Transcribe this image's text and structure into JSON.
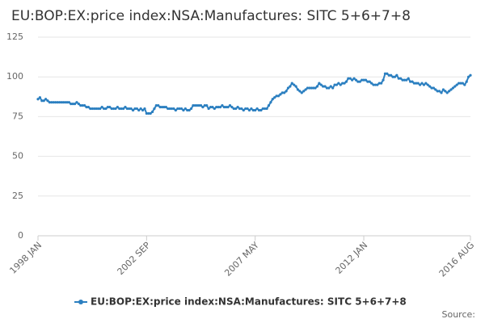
{
  "chart_data": {
    "type": "line",
    "title": "EU:BOP:EX:price index:NSA:Manufactures: SITC 5+6+7+8",
    "source": "Source:",
    "categories": [
      "1998 JAN",
      null,
      null,
      null,
      null,
      null,
      null,
      null,
      null,
      null,
      null,
      null,
      null,
      null,
      null,
      null,
      null,
      null,
      null,
      null,
      null,
      null,
      null,
      null,
      null,
      null,
      null,
      null,
      null,
      null,
      null,
      null,
      null,
      null,
      null,
      null,
      null,
      null,
      null,
      null,
      null,
      null,
      null,
      null,
      null,
      null,
      null,
      null,
      null,
      null,
      null,
      null,
      null,
      null,
      null,
      null,
      "2002 SEP",
      null,
      null,
      null,
      null,
      null,
      null,
      null,
      null,
      null,
      null,
      null,
      null,
      null,
      null,
      null,
      null,
      null,
      null,
      null,
      null,
      null,
      null,
      null,
      null,
      null,
      null,
      null,
      null,
      null,
      null,
      null,
      null,
      null,
      null,
      null,
      null,
      null,
      null,
      null,
      null,
      null,
      null,
      null,
      null,
      null,
      null,
      null,
      null,
      null,
      null,
      null,
      null,
      null,
      null,
      null,
      "2007 MAY",
      null,
      null,
      null,
      null,
      null,
      null,
      null,
      null,
      null,
      null,
      null,
      null,
      null,
      null,
      null,
      null,
      null,
      null,
      null,
      null,
      null,
      null,
      null,
      null,
      null,
      null,
      null,
      null,
      null,
      null,
      null,
      null,
      null,
      null,
      null,
      null,
      null,
      null,
      null,
      null,
      null,
      null,
      null,
      null,
      null,
      null,
      null,
      null,
      null,
      null,
      null,
      null,
      null,
      null,
      null,
      "2012 JAN",
      null,
      null,
      null,
      null,
      null,
      null,
      null,
      null,
      null,
      null,
      null,
      null,
      null,
      null,
      null,
      null,
      null,
      null,
      null,
      null,
      null,
      null,
      null,
      null,
      null,
      null,
      null,
      null,
      null,
      null,
      null,
      null,
      null,
      null,
      null,
      null,
      null,
      null,
      null,
      null,
      null,
      null,
      null,
      null,
      null,
      null,
      null,
      null,
      null,
      null,
      null,
      null,
      null,
      null,
      "2016 AUG"
    ],
    "series": [
      {
        "name": "EU:BOP:EX:price index:NSA:Manufactures: SITC 5+6+7+8",
        "color": "#2b7fc0",
        "values": [
          86,
          87,
          85,
          85,
          86,
          85,
          84,
          84,
          84,
          84,
          84,
          84,
          84,
          84,
          84,
          84,
          84,
          83,
          83,
          83,
          84,
          83,
          82,
          82,
          82,
          81,
          81,
          80,
          80,
          80,
          80,
          80,
          80,
          81,
          80,
          80,
          81,
          81,
          80,
          80,
          80,
          81,
          80,
          80,
          80,
          81,
          80,
          80,
          80,
          79,
          80,
          80,
          79,
          80,
          79,
          80,
          77,
          77,
          77,
          78,
          80,
          82,
          82,
          81,
          81,
          81,
          81,
          80,
          80,
          80,
          80,
          79,
          80,
          80,
          80,
          79,
          80,
          79,
          79,
          80,
          82,
          82,
          82,
          82,
          82,
          81,
          82,
          82,
          80,
          81,
          81,
          80,
          81,
          81,
          81,
          82,
          81,
          81,
          81,
          82,
          81,
          80,
          80,
          81,
          80,
          80,
          79,
          80,
          80,
          79,
          80,
          79,
          79,
          80,
          79,
          79,
          80,
          80,
          80,
          82,
          84,
          86,
          87,
          88,
          88,
          89,
          90,
          90,
          91,
          93,
          94,
          96,
          95,
          94,
          92,
          91,
          90,
          91,
          92,
          93,
          93,
          93,
          93,
          93,
          94,
          96,
          95,
          94,
          94,
          93,
          93,
          94,
          93,
          95,
          95,
          96,
          95,
          96,
          96,
          97,
          99,
          99,
          98,
          99,
          98,
          97,
          97,
          98,
          98,
          98,
          97,
          97,
          96,
          95,
          95,
          95,
          96,
          96,
          98,
          102,
          102,
          101,
          101,
          100,
          100,
          101,
          99,
          99,
          98,
          98,
          98,
          99,
          97,
          97,
          96,
          96,
          96,
          95,
          96,
          95,
          96,
          95,
          94,
          93,
          93,
          92,
          91,
          91,
          90,
          92,
          91,
          90,
          91,
          92,
          93,
          94,
          95,
          96,
          96,
          96,
          95,
          97,
          100,
          101
        ]
      }
    ],
    "ylim": [
      0,
      125
    ],
    "yticks": [
      0,
      25,
      50,
      75,
      100,
      125
    ],
    "grid": true,
    "legend": "bottom"
  }
}
